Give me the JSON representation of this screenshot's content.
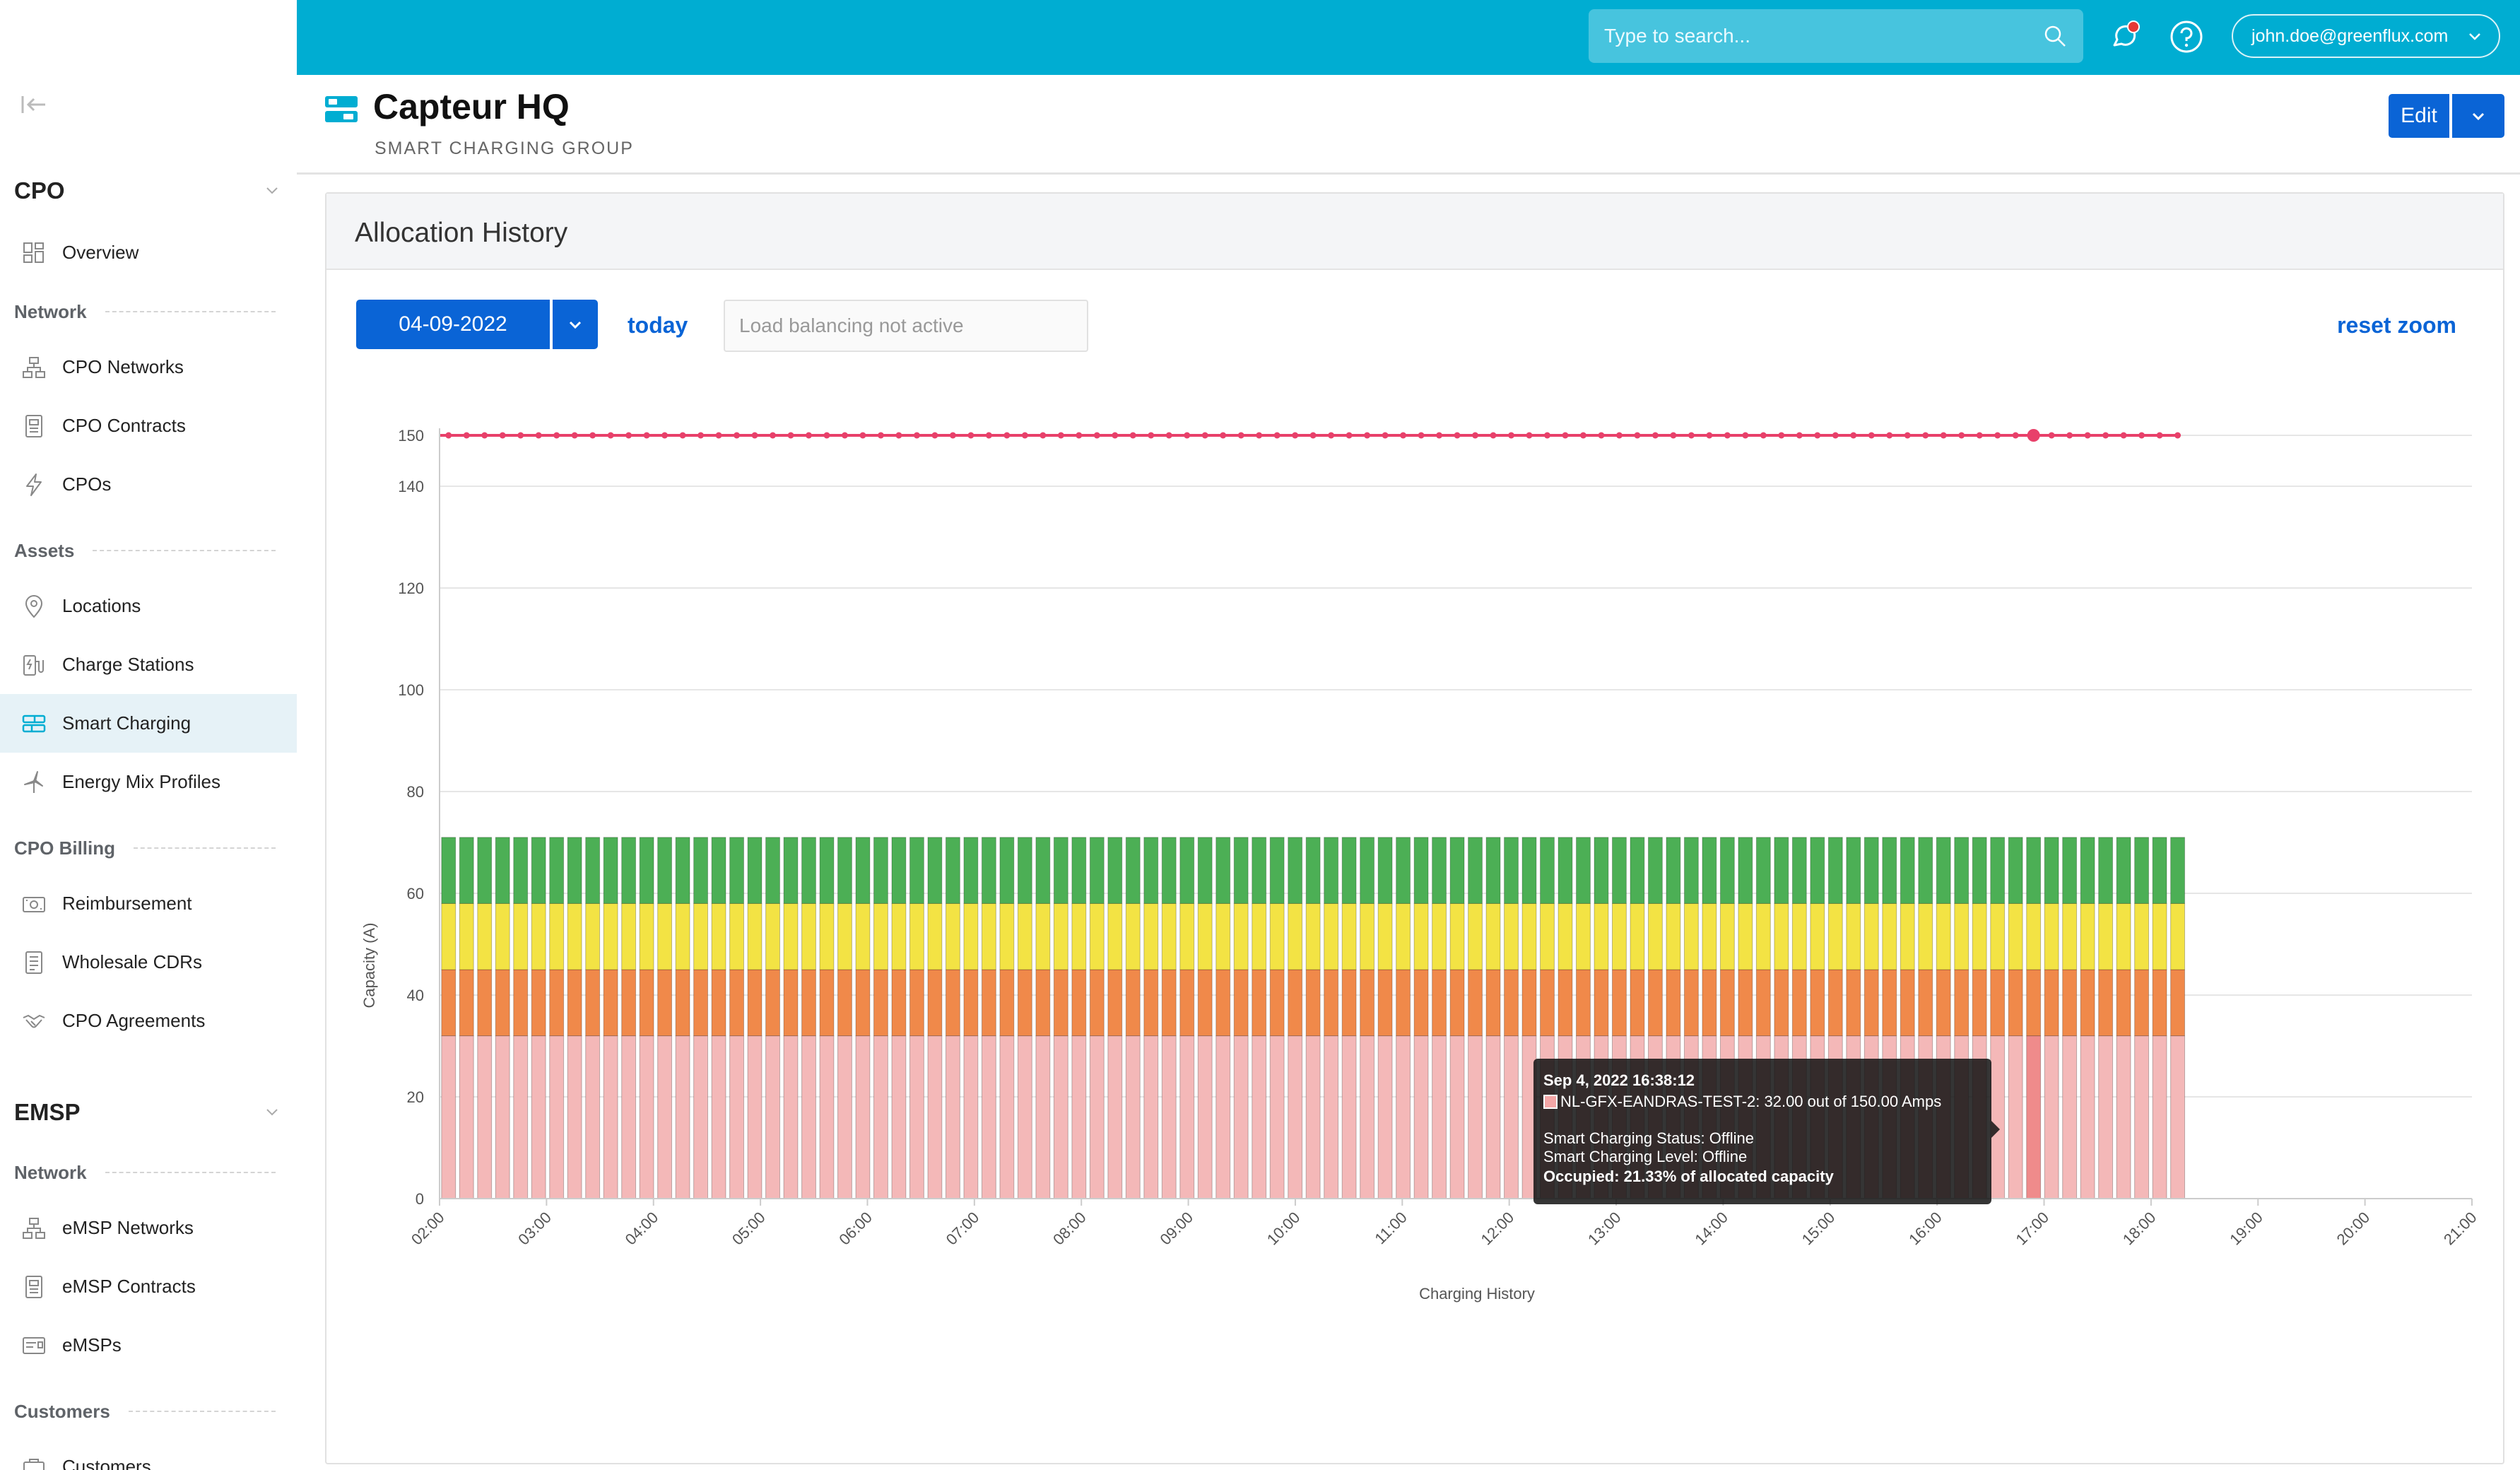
{
  "sidebar": {
    "sections": [
      {
        "title": "CPO"
      },
      {
        "title": "EMSP"
      }
    ],
    "groups": {
      "cpo_network": "Network",
      "assets": "Assets",
      "cpo_billing": "CPO Billing",
      "emsp_network": "Network",
      "customers": "Customers"
    },
    "items": {
      "overview": "Overview",
      "cpo_networks": "CPO Networks",
      "cpo_contracts": "CPO Contracts",
      "cpos": "CPOs",
      "locations": "Locations",
      "charge_stations": "Charge Stations",
      "smart_charging": "Smart Charging",
      "energy_mix_profiles": "Energy Mix Profiles",
      "reimbursement": "Reimbursement",
      "wholesale_cdrs": "Wholesale CDRs",
      "cpo_agreements": "CPO Agreements",
      "emsp_networks": "eMSP Networks",
      "emsp_contracts": "eMSP Contracts",
      "emsps": "eMSPs",
      "customers": "Customers"
    },
    "active_item": "smart_charging"
  },
  "topbar": {
    "search_placeholder": "Type to search...",
    "user_email": "john.doe@greenflux.com",
    "accent_color": "#00add2"
  },
  "page": {
    "title": "Capteur HQ",
    "subtitle": "SMART CHARGING GROUP",
    "edit_label": "Edit"
  },
  "card": {
    "title": "Allocation History",
    "date_value": "04-09-2022",
    "today_label": "today",
    "load_balancing": "Load balancing not active",
    "reset_zoom": "reset zoom"
  },
  "chart_data": {
    "type": "bar",
    "stacked": true,
    "xlabel": "Charging History",
    "ylabel": "Capacity (A)",
    "ylim": [
      0,
      150
    ],
    "y_ticks": [
      0,
      20,
      40,
      60,
      80,
      100,
      120,
      140,
      150
    ],
    "x_ticks": [
      "02:00",
      "03:00",
      "04:00",
      "05:00",
      "06:00",
      "07:00",
      "08:00",
      "09:00",
      "10:00",
      "11:00",
      "12:00",
      "13:00",
      "14:00",
      "15:00",
      "16:00",
      "17:00",
      "18:00",
      "19:00",
      "20:00",
      "21:00"
    ],
    "x_range_hours": [
      2,
      21
    ],
    "bar_range_hours": [
      2,
      18.333
    ],
    "bar_count": 97,
    "highlight_bar_index": 88,
    "series": [
      {
        "color": "#f4b8b8",
        "value": 32
      },
      {
        "color": "#f0894a",
        "value": 13
      },
      {
        "color": "#f3e344",
        "value": 13
      },
      {
        "color": "#4caf55",
        "value": 13
      }
    ],
    "limit_line": {
      "color": "#e8406a",
      "value": 150
    },
    "grid": true
  },
  "tooltip": {
    "timestamp": "Sep 4, 2022 16:38:12",
    "series_line": "NL-GFX-EANDRAS-TEST-2: 32.00  out of  150.00 Amps",
    "status": "Smart Charging Status: Offline",
    "level": "Smart Charging Level: Offline",
    "occupied": "Occupied: 21.33%  of allocated capacity"
  }
}
